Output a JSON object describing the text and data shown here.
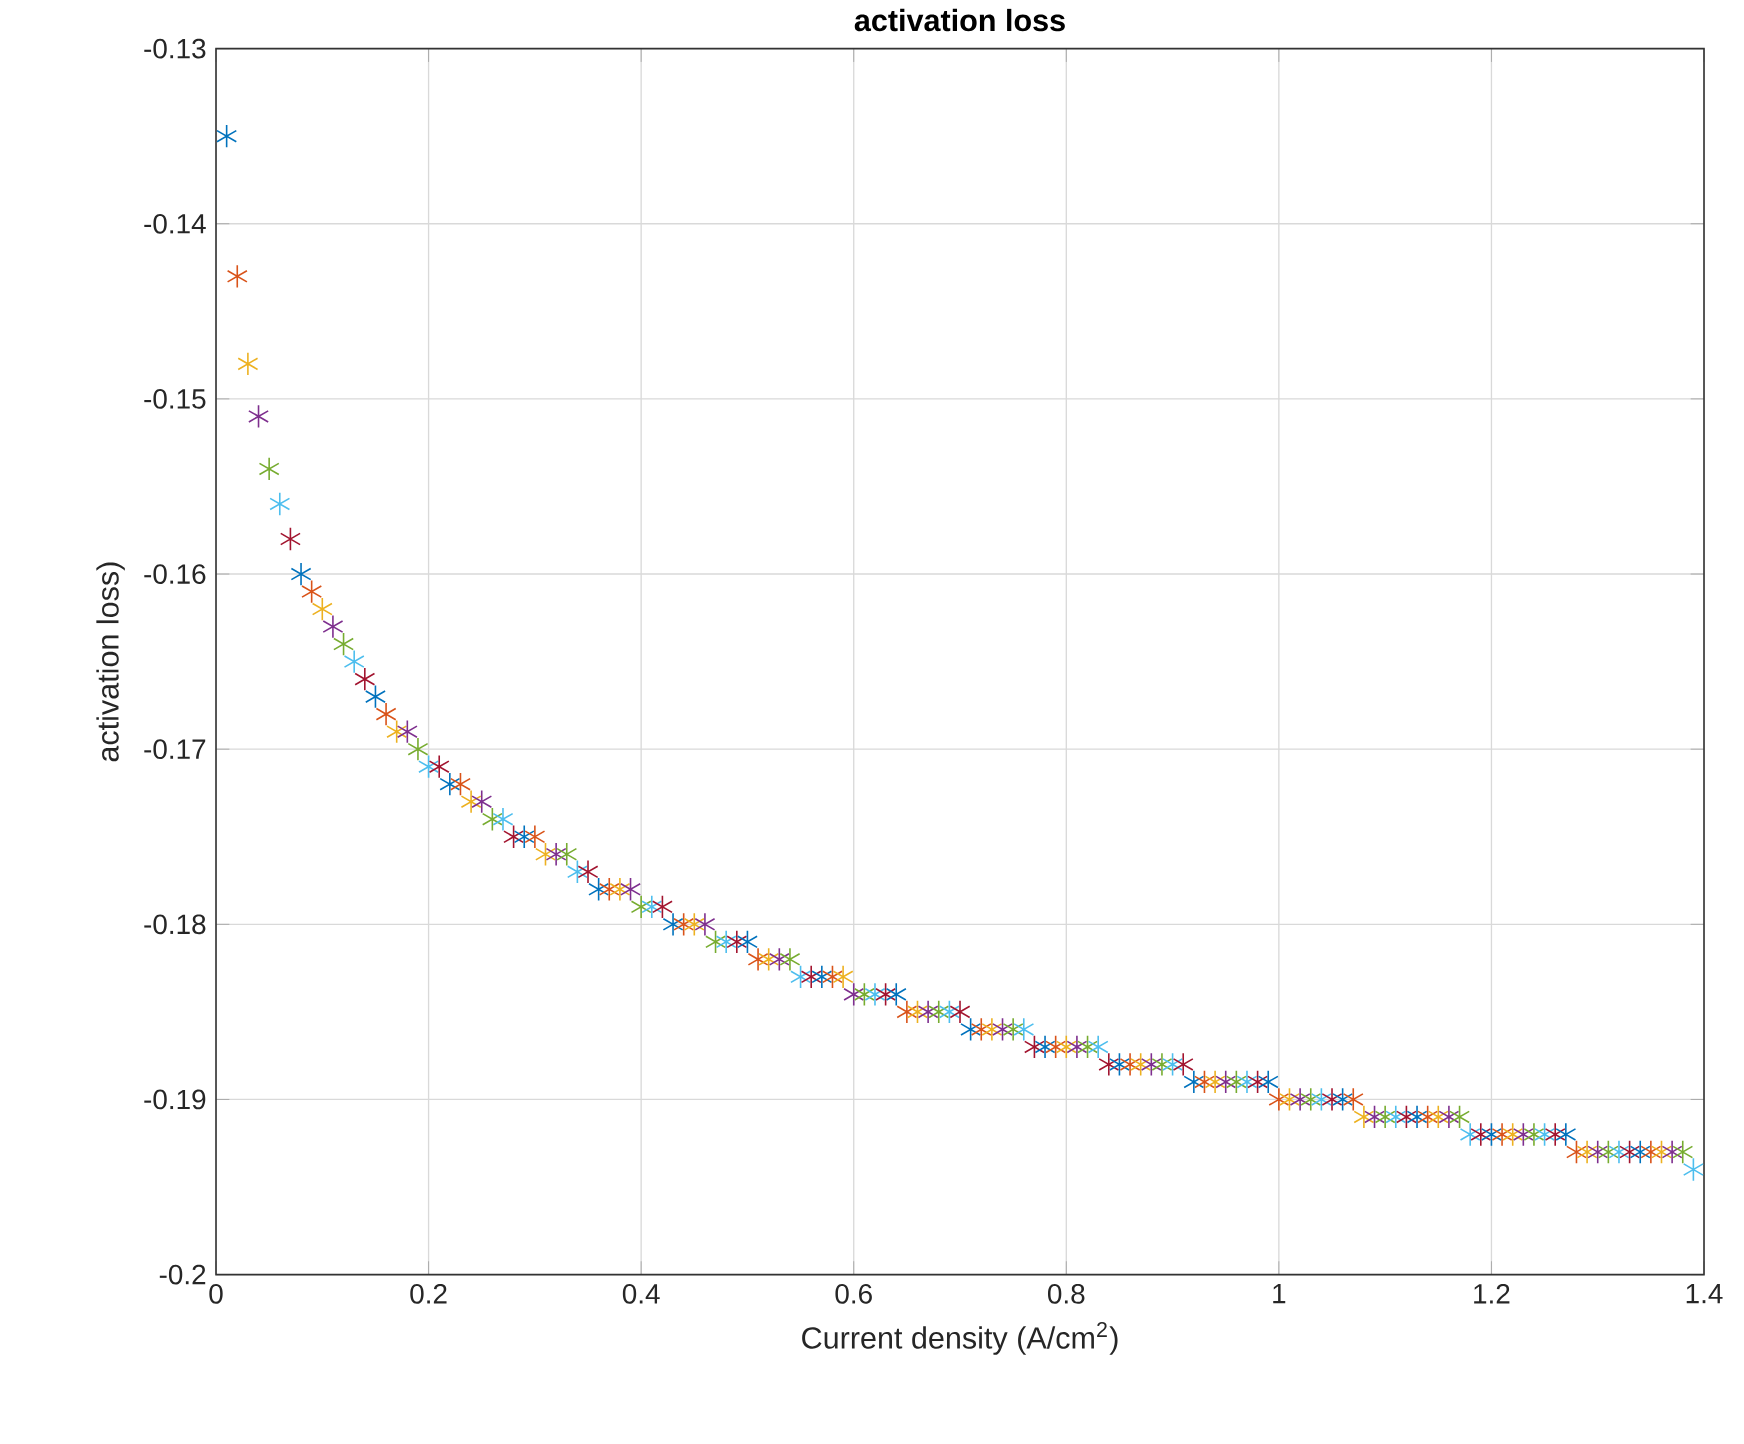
{
  "chart_data": {
    "type": "scatter",
    "title": "activation loss",
    "xlabel": "Current density (A/cm$^{2}$)",
    "ylabel": "activation loss)",
    "x": [
      0.01,
      0.02,
      0.03,
      0.04,
      0.05,
      0.06,
      0.07,
      0.08,
      0.09,
      0.1,
      0.11,
      0.12,
      0.13,
      0.14,
      0.15,
      0.16,
      0.17,
      0.18,
      0.19,
      0.2,
      0.21,
      0.22,
      0.23,
      0.24,
      0.25,
      0.26,
      0.27,
      0.28,
      0.29,
      0.3,
      0.31,
      0.32,
      0.33,
      0.34,
      0.35,
      0.36,
      0.37,
      0.38,
      0.39,
      0.4,
      0.41,
      0.42,
      0.43,
      0.44,
      0.45,
      0.46,
      0.47,
      0.48,
      0.49,
      0.5,
      0.51,
      0.52,
      0.53,
      0.54,
      0.55,
      0.56,
      0.57,
      0.58,
      0.59,
      0.6,
      0.61,
      0.62,
      0.63,
      0.64,
      0.65,
      0.66,
      0.67,
      0.68,
      0.69,
      0.7,
      0.71,
      0.72,
      0.73,
      0.74,
      0.75,
      0.76,
      0.77,
      0.78,
      0.79,
      0.8,
      0.81,
      0.82,
      0.83,
      0.84,
      0.85,
      0.86,
      0.87,
      0.88,
      0.89,
      0.9,
      0.91,
      0.92,
      0.93,
      0.94,
      0.95,
      0.96,
      0.97,
      0.98,
      0.99,
      1.0,
      1.01,
      1.02,
      1.03,
      1.04,
      1.05,
      1.06,
      1.07,
      1.08,
      1.09,
      1.1,
      1.11,
      1.12,
      1.13,
      1.14,
      1.15,
      1.16,
      1.17,
      1.18,
      1.19,
      1.2,
      1.21,
      1.22,
      1.23,
      1.24,
      1.25,
      1.26,
      1.27,
      1.28,
      1.29,
      1.3,
      1.31,
      1.32,
      1.33,
      1.34,
      1.35,
      1.36,
      1.37,
      1.38,
      1.39
    ],
    "values": [
      -0.135,
      -0.143,
      -0.148,
      -0.151,
      -0.154,
      -0.156,
      -0.158,
      -0.16,
      -0.161,
      -0.162,
      -0.163,
      -0.164,
      -0.165,
      -0.166,
      -0.167,
      -0.168,
      -0.169,
      -0.169,
      -0.17,
      -0.171,
      -0.171,
      -0.172,
      -0.172,
      -0.173,
      -0.173,
      -0.174,
      -0.174,
      -0.175,
      -0.175,
      -0.175,
      -0.176,
      -0.176,
      -0.176,
      -0.177,
      -0.177,
      -0.178,
      -0.178,
      -0.178,
      -0.178,
      -0.179,
      -0.179,
      -0.179,
      -0.18,
      -0.18,
      -0.18,
      -0.18,
      -0.181,
      -0.181,
      -0.181,
      -0.181,
      -0.182,
      -0.182,
      -0.182,
      -0.182,
      -0.183,
      -0.183,
      -0.183,
      -0.183,
      -0.183,
      -0.184,
      -0.184,
      -0.184,
      -0.184,
      -0.184,
      -0.185,
      -0.185,
      -0.185,
      -0.185,
      -0.185,
      -0.185,
      -0.186,
      -0.186,
      -0.186,
      -0.186,
      -0.186,
      -0.186,
      -0.187,
      -0.187,
      -0.187,
      -0.187,
      -0.187,
      -0.187,
      -0.187,
      -0.188,
      -0.188,
      -0.188,
      -0.188,
      -0.188,
      -0.188,
      -0.188,
      -0.188,
      -0.189,
      -0.189,
      -0.189,
      -0.189,
      -0.189,
      -0.189,
      -0.189,
      -0.189,
      -0.19,
      -0.19,
      -0.19,
      -0.19,
      -0.19,
      -0.19,
      -0.19,
      -0.19,
      -0.191,
      -0.191,
      -0.191,
      -0.191,
      -0.191,
      -0.191,
      -0.191,
      -0.191,
      -0.191,
      -0.191,
      -0.192,
      -0.192,
      -0.192,
      -0.192,
      -0.192,
      -0.192,
      -0.192,
      -0.192,
      -0.192,
      -0.192,
      -0.193,
      -0.193,
      -0.193,
      -0.193,
      -0.193,
      -0.193,
      -0.193,
      -0.193,
      -0.193,
      -0.193,
      -0.193,
      -0.194
    ],
    "colors": [
      "#0072bd",
      "#d95319",
      "#edb120",
      "#7e2f8e",
      "#77ac30",
      "#4dbeee",
      "#a2142f",
      "#0072bd",
      "#d95319",
      "#edb120",
      "#7e2f8e",
      "#77ac30",
      "#4dbeee",
      "#a2142f",
      "#0072bd",
      "#d95319",
      "#edb120",
      "#7e2f8e",
      "#77ac30",
      "#4dbeee",
      "#a2142f",
      "#0072bd",
      "#d95319",
      "#edb120",
      "#7e2f8e",
      "#77ac30",
      "#4dbeee",
      "#a2142f",
      "#0072bd",
      "#d95319",
      "#edb120",
      "#7e2f8e",
      "#77ac30",
      "#4dbeee",
      "#a2142f",
      "#0072bd",
      "#d95319",
      "#edb120",
      "#7e2f8e",
      "#77ac30",
      "#4dbeee",
      "#a2142f",
      "#0072bd",
      "#d95319",
      "#edb120",
      "#7e2f8e",
      "#77ac30",
      "#4dbeee",
      "#a2142f",
      "#0072bd",
      "#d95319",
      "#edb120",
      "#7e2f8e",
      "#77ac30",
      "#4dbeee",
      "#a2142f",
      "#0072bd",
      "#d95319",
      "#edb120",
      "#7e2f8e",
      "#77ac30",
      "#4dbeee",
      "#a2142f",
      "#0072bd",
      "#d95319",
      "#edb120",
      "#7e2f8e",
      "#77ac30",
      "#4dbeee",
      "#a2142f",
      "#0072bd",
      "#d95319",
      "#edb120",
      "#7e2f8e",
      "#77ac30",
      "#4dbeee",
      "#a2142f",
      "#0072bd",
      "#d95319",
      "#edb120",
      "#7e2f8e",
      "#77ac30",
      "#4dbeee",
      "#a2142f",
      "#0072bd",
      "#d95319",
      "#edb120",
      "#7e2f8e",
      "#77ac30",
      "#4dbeee",
      "#a2142f",
      "#0072bd",
      "#d95319",
      "#edb120",
      "#7e2f8e",
      "#77ac30",
      "#4dbeee",
      "#a2142f",
      "#0072bd",
      "#d95319",
      "#edb120",
      "#7e2f8e",
      "#77ac30",
      "#4dbeee",
      "#a2142f",
      "#0072bd",
      "#d95319",
      "#edb120",
      "#7e2f8e",
      "#77ac30",
      "#4dbeee",
      "#a2142f",
      "#0072bd",
      "#d95319",
      "#edb120",
      "#7e2f8e",
      "#77ac30",
      "#4dbeee",
      "#a2142f",
      "#0072bd",
      "#d95319",
      "#edb120",
      "#7e2f8e",
      "#77ac30",
      "#4dbeee",
      "#a2142f",
      "#0072bd",
      "#d95319",
      "#edb120",
      "#7e2f8e",
      "#77ac30",
      "#4dbeee",
      "#a2142f",
      "#0072bd",
      "#d95319",
      "#edb120",
      "#7e2f8e",
      "#77ac30",
      "#4dbeee"
    ],
    "xlim": [
      0,
      1.4
    ],
    "xticks": [
      0,
      0.2,
      0.4,
      0.6,
      0.8,
      1,
      1.2,
      1.4
    ],
    "ylim": [
      -0.2,
      -0.13
    ],
    "yticks": [
      -0.2,
      -0.19,
      -0.18,
      -0.17,
      -0.16,
      -0.15,
      -0.14,
      -0.13
    ],
    "grid": true,
    "marker": "cross"
  }
}
